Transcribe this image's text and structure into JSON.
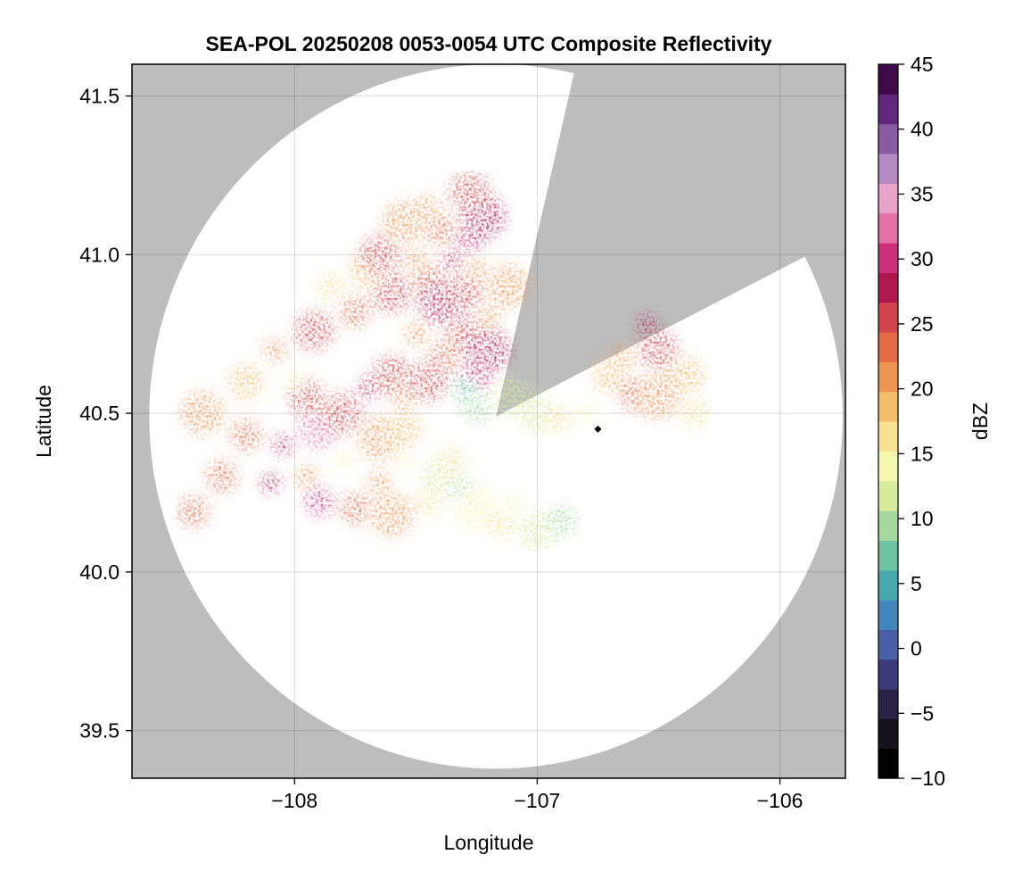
{
  "chart_data": {
    "type": "heatmap",
    "title": "SEA-POL 20250208 0053-0054 UTC Composite Reflectivity",
    "xlabel": "Longitude",
    "ylabel": "Latitude",
    "xlim": [
      -108.67,
      -105.73
    ],
    "ylim": [
      39.35,
      41.6
    ],
    "xticks": [
      -108,
      -107,
      -106
    ],
    "xtick_labels": [
      "−108",
      "−107",
      "−106"
    ],
    "yticks": [
      39.5,
      40.0,
      40.5,
      41.0,
      41.5
    ],
    "ytick_labels": [
      "39.5",
      "40.0",
      "40.5",
      "41.0",
      "41.5"
    ],
    "grid": true,
    "radar": {
      "center_lon": -107.17,
      "center_lat": 40.49,
      "range_deg_lat": 1.11,
      "blocked_sectors_bearing_deg": [
        [
          13,
          63
        ]
      ],
      "site_marker": {
        "lon": -106.75,
        "lat": 40.45
      }
    },
    "colorbar": {
      "label": "dBZ",
      "range": [
        -10,
        45
      ],
      "ticks": [
        -10,
        -5,
        0,
        5,
        10,
        15,
        20,
        25,
        30,
        35,
        40,
        45
      ],
      "tick_labels": [
        "−10",
        "−5",
        "0",
        "5",
        "10",
        "15",
        "20",
        "25",
        "30",
        "35",
        "40",
        "45"
      ],
      "colors": [
        "#000000",
        "#16121e",
        "#2a2347",
        "#3c3a78",
        "#4a5fa8",
        "#4187bb",
        "#47a9ad",
        "#6cc4a2",
        "#a6d99e",
        "#d8ec9c",
        "#f5f7ae",
        "#f7e090",
        "#f3bd6a",
        "#ee9551",
        "#e46a46",
        "#d1444c",
        "#b0174f",
        "#cc2f7b",
        "#e472a8",
        "#e7a2ca",
        "#b58ac3",
        "#8a5aa2",
        "#62287d",
        "#3f0a4a"
      ]
    },
    "echo_cells_lonlat_dbz": [
      [
        -108.2,
        40.43,
        24
      ],
      [
        -108.05,
        40.4,
        28
      ],
      [
        -107.9,
        40.45,
        33
      ],
      [
        -107.95,
        40.55,
        25
      ],
      [
        -107.8,
        40.5,
        26
      ],
      [
        -107.7,
        40.58,
        28
      ],
      [
        -107.6,
        40.62,
        26
      ],
      [
        -107.55,
        40.55,
        22
      ],
      [
        -107.65,
        40.42,
        20
      ],
      [
        -107.8,
        40.35,
        14
      ],
      [
        -107.95,
        40.3,
        22
      ],
      [
        -108.1,
        40.28,
        28
      ],
      [
        -107.9,
        40.22,
        30
      ],
      [
        -107.75,
        40.2,
        24
      ],
      [
        -107.65,
        40.28,
        22
      ],
      [
        -108.3,
        40.3,
        24
      ],
      [
        -108.38,
        40.5,
        20
      ],
      [
        -108.2,
        40.6,
        18
      ],
      [
        -108.08,
        40.7,
        22
      ],
      [
        -107.92,
        40.76,
        26
      ],
      [
        -107.75,
        40.82,
        24
      ],
      [
        -107.6,
        40.88,
        26
      ],
      [
        -107.45,
        40.92,
        24
      ],
      [
        -107.35,
        40.98,
        28
      ],
      [
        -107.28,
        41.05,
        30
      ],
      [
        -107.22,
        41.12,
        27
      ],
      [
        -107.4,
        41.08,
        24
      ],
      [
        -107.5,
        40.98,
        22
      ],
      [
        -107.3,
        40.75,
        25
      ],
      [
        -107.38,
        40.68,
        24
      ],
      [
        -107.25,
        40.62,
        31
      ],
      [
        -107.2,
        40.7,
        27
      ],
      [
        -107.45,
        40.6,
        26
      ],
      [
        -107.5,
        40.75,
        22
      ],
      [
        -107.4,
        40.85,
        27
      ],
      [
        -107.3,
        40.88,
        25
      ],
      [
        -107.2,
        40.8,
        22
      ],
      [
        -107.12,
        40.9,
        20
      ],
      [
        -107.55,
        40.45,
        18
      ],
      [
        -107.4,
        40.3,
        12
      ],
      [
        -107.3,
        40.25,
        9
      ],
      [
        -107.45,
        40.22,
        16
      ],
      [
        -107.25,
        40.2,
        13
      ],
      [
        -107.6,
        40.18,
        20
      ],
      [
        -107.35,
        40.35,
        16
      ],
      [
        -106.55,
        40.78,
        28
      ],
      [
        -106.5,
        40.7,
        26
      ],
      [
        -106.65,
        40.68,
        22
      ],
      [
        -106.7,
        40.62,
        18
      ],
      [
        -106.6,
        40.56,
        24
      ],
      [
        -106.5,
        40.55,
        20
      ],
      [
        -106.45,
        40.6,
        22
      ],
      [
        -106.38,
        40.62,
        18
      ],
      [
        -106.35,
        40.5,
        17
      ],
      [
        -106.8,
        40.5,
        14
      ],
      [
        -107.25,
        40.52,
        10
      ],
      [
        -107.3,
        40.58,
        8
      ],
      [
        -107.0,
        40.5,
        12
      ],
      [
        -106.92,
        40.48,
        16
      ],
      [
        -107.1,
        40.55,
        12
      ],
      [
        -107.7,
        40.95,
        18
      ],
      [
        -107.65,
        41.0,
        26
      ],
      [
        -107.85,
        40.9,
        16
      ],
      [
        -108.0,
        40.6,
        14
      ],
      [
        -107.55,
        40.35,
        14
      ],
      [
        -107.15,
        40.15,
        16
      ],
      [
        -107.1,
        40.22,
        14
      ],
      [
        -107.0,
        40.13,
        12
      ],
      [
        -106.9,
        40.16,
        10
      ],
      [
        -107.28,
        41.2,
        26
      ],
      [
        -107.45,
        41.15,
        22
      ],
      [
        -107.55,
        41.1,
        20
      ],
      [
        -108.42,
        40.19,
        24
      ],
      [
        -107.25,
        40.95,
        22
      ]
    ]
  }
}
